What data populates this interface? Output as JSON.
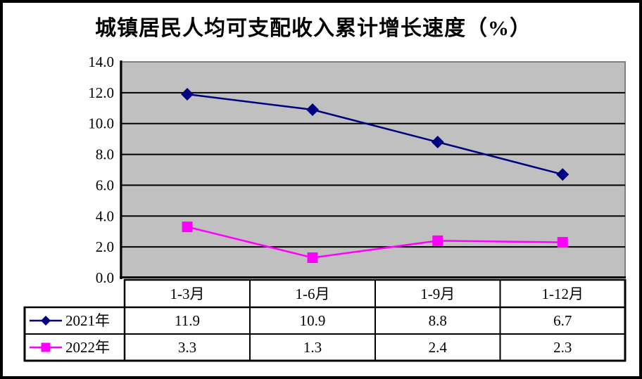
{
  "frame": {
    "background": "#FFFFFF",
    "border_color": "#000000"
  },
  "chart_data": {
    "type": "line",
    "title": "城镇居民人均可支配收入累计增长速度（%）",
    "categories": [
      "1-3月",
      "1-6月",
      "1-9月",
      "1-12月"
    ],
    "series": [
      {
        "name": "2021年",
        "values": [
          11.9,
          10.9,
          8.8,
          6.7
        ],
        "display_values": [
          "11.9",
          "10.9",
          "8.8",
          "6.7"
        ],
        "color": "#000080",
        "marker": "diamond"
      },
      {
        "name": "2022年",
        "values": [
          3.3,
          1.3,
          2.4,
          2.3
        ],
        "display_values": [
          "3.3",
          "1.3",
          "2.4",
          "2.3"
        ],
        "color": "#FF00FF",
        "marker": "square"
      }
    ],
    "ylim": [
      0,
      14
    ],
    "ytick_step": 2,
    "ytick_labels": [
      "0.0",
      "2.0",
      "4.0",
      "6.0",
      "8.0",
      "10.0",
      "12.0",
      "14.0"
    ],
    "grid": true,
    "gridline_color": "#000000",
    "axis_color": "#000000",
    "plot_bg": "#C0C0C0",
    "plot_border_color": "#808080",
    "text_color": "#000000",
    "legend_position": "data-table-left"
  }
}
